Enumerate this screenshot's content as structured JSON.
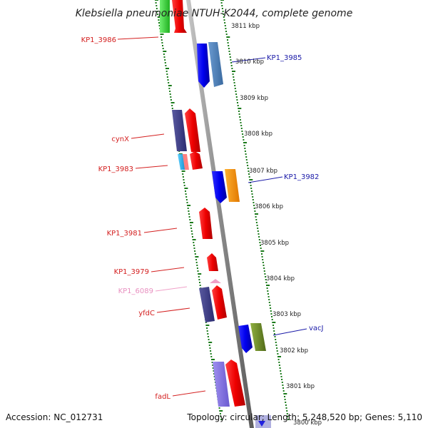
{
  "title": "Klebsiella pneumoniae NTUH-K2044, complete genome",
  "footer": {
    "accession": "Accession: NC_012731",
    "summary": "Topology: circular; Length: 5,248,520 bp; Genes: 5,110"
  },
  "kbp_labels": [
    "3811 kbp",
    "3810 kbp",
    "3809 kbp",
    "3808 kbp",
    "3807 kbp",
    "3806 kbp",
    "3805 kbp",
    "3804 kbp",
    "3803 kbp",
    "3802 kbp",
    "3801 kbp",
    "3800 kbp"
  ],
  "gene_labels": [
    {
      "name": "KP1_3986",
      "color": "#d42020"
    },
    {
      "name": "KP1_3985",
      "color": "#1a1aa8"
    },
    {
      "name": "cynX",
      "color": "#d42020"
    },
    {
      "name": "KP1_3983",
      "color": "#d42020"
    },
    {
      "name": "KP1_3982",
      "color": "#1a1aa8"
    },
    {
      "name": "KP1_3981",
      "color": "#d42020"
    },
    {
      "name": "KP1_3979",
      "color": "#d42020"
    },
    {
      "name": "KP1_6089",
      "color": "#e890c0"
    },
    {
      "name": "yfdC",
      "color": "#d42020"
    },
    {
      "name": "vacJ",
      "color": "#1a1aa8"
    },
    {
      "name": "fadL",
      "color": "#d42020"
    }
  ],
  "colors": {
    "backbone": "#8a8a8a",
    "tick_green": "#1a7a1a",
    "forward_gene": "#ff0000",
    "reverse_gene": "#0000ff"
  }
}
